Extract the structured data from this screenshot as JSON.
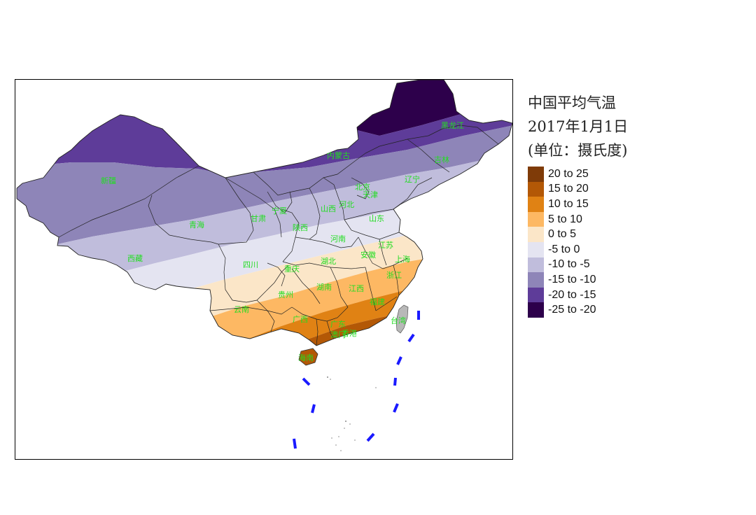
{
  "title": {
    "line1": "中国平均气温",
    "line2": "2017年1月1日",
    "line3": "(单位：摄氏度)"
  },
  "legend": {
    "items": [
      {
        "label": "20 to 25",
        "color": "#7f3b08"
      },
      {
        "label": "15 to 20",
        "color": "#b35806"
      },
      {
        "label": "10 to 15",
        "color": "#e08214"
      },
      {
        "label": "5 to 10",
        "color": "#fdb863"
      },
      {
        "label": "0 to 5",
        "color": "#fbe6c8"
      },
      {
        "label": "-5 to 0",
        "color": "#e4e4f1"
      },
      {
        "label": "-10 to -5",
        "color": "#c0bddc"
      },
      {
        "label": "-15 to -10",
        "color": "#8e85b8"
      },
      {
        "label": "-20 to -15",
        "color": "#5e3c99"
      },
      {
        "label": "-25 to -20",
        "color": "#2d004b"
      }
    ]
  },
  "provinces": [
    "黑龙江",
    "吉林",
    "辽宁",
    "内蒙古",
    "新疆",
    "青海",
    "西藏",
    "甘肃",
    "宁夏",
    "陕西",
    "山西",
    "河北",
    "北京",
    "天津",
    "山东",
    "河南",
    "江苏",
    "安徽",
    "上海",
    "浙江",
    "湖北",
    "四川",
    "重庆",
    "贵州",
    "湖南",
    "江西",
    "福建",
    "台湾",
    "云南",
    "广西",
    "广东",
    "香港",
    "澳门",
    "海南"
  ]
}
